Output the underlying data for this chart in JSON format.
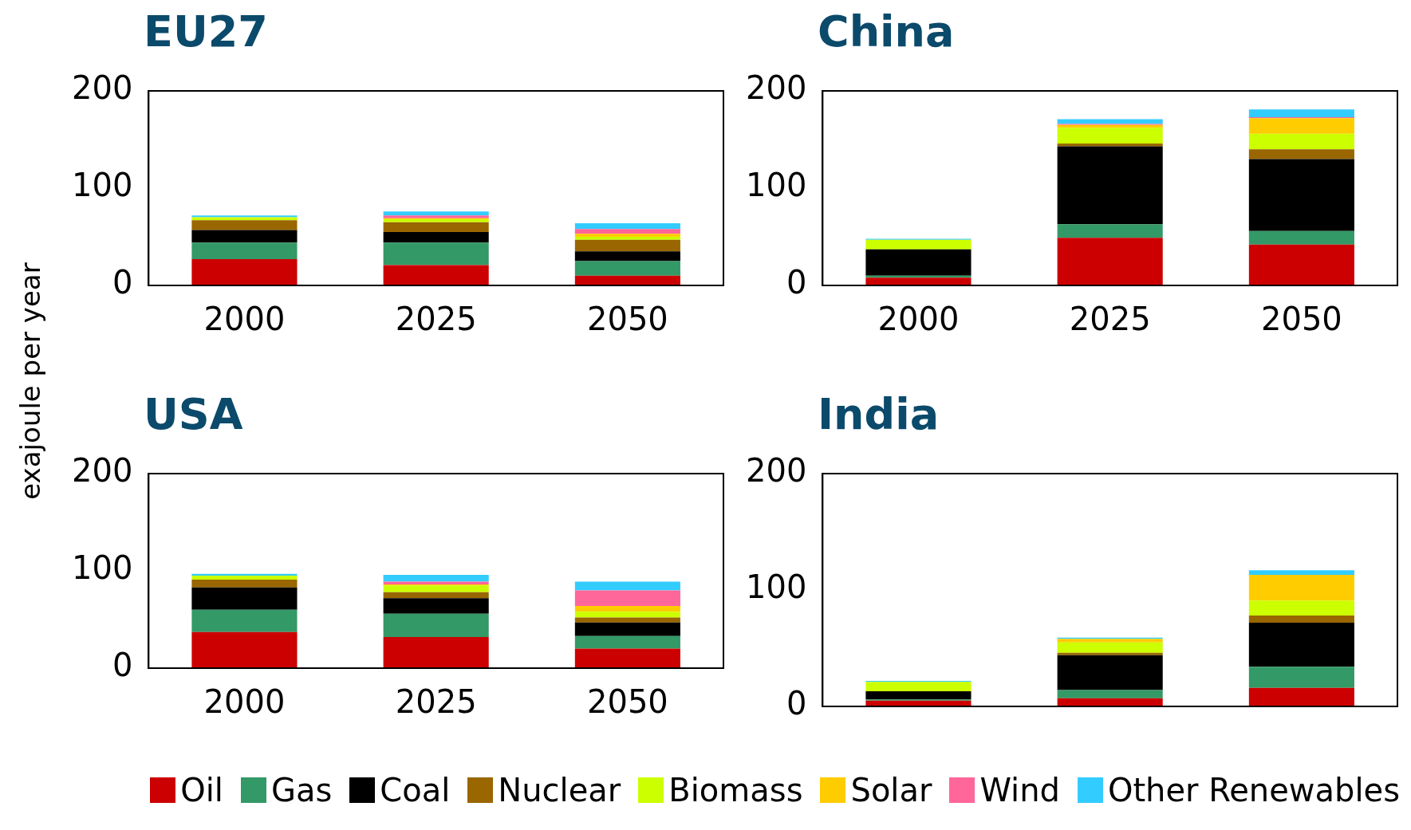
{
  "chart_data": [
    {
      "type": "bar",
      "title": "EU27",
      "ylabel": "exajoule per year",
      "categories": [
        "2000",
        "2025",
        "2050"
      ],
      "stacked": true,
      "ylim": [
        0,
        200
      ],
      "yticks": [
        0,
        100,
        200
      ],
      "grid": false,
      "legend": "bottom",
      "series": [
        {
          "name": "Oil",
          "color": "#cc0000",
          "values": [
            27,
            21,
            10
          ]
        },
        {
          "name": "Gas",
          "color": "#339966",
          "values": [
            17,
            23,
            15
          ]
        },
        {
          "name": "Coal",
          "color": "#000000",
          "values": [
            13,
            11,
            10
          ]
        },
        {
          "name": "Nuclear",
          "color": "#996600",
          "values": [
            10,
            10,
            12
          ]
        },
        {
          "name": "Biomass",
          "color": "#ccff00",
          "values": [
            3,
            3,
            3
          ]
        },
        {
          "name": "Solar",
          "color": "#ffcc00",
          "values": [
            0,
            1,
            3
          ]
        },
        {
          "name": "Wind",
          "color": "#ff6699",
          "values": [
            0,
            3,
            5
          ]
        },
        {
          "name": "Other Renewables",
          "color": "#33ccff",
          "values": [
            2,
            4,
            6
          ]
        }
      ]
    },
    {
      "type": "bar",
      "title": "China",
      "categories": [
        "2000",
        "2025",
        "2050"
      ],
      "stacked": true,
      "ylim": [
        0,
        200
      ],
      "yticks": [
        0,
        100,
        200
      ],
      "grid": false,
      "series": [
        {
          "color": "#cc0000",
          "values": [
            8,
            49,
            42
          ]
        },
        {
          "color": "#339966",
          "values": [
            2,
            14,
            14
          ]
        },
        {
          "color": "#000000",
          "values": [
            27,
            80,
            74
          ]
        },
        {
          "color": "#996600",
          "values": [
            0,
            3,
            10
          ]
        },
        {
          "color": "#ccff00",
          "values": [
            10,
            16,
            16
          ]
        },
        {
          "color": "#ffcc00",
          "values": [
            0,
            3,
            16
          ]
        },
        {
          "color": "#ff6699",
          "values": [
            0,
            1,
            1
          ]
        },
        {
          "color": "#33ccff",
          "values": [
            1,
            5,
            8
          ]
        }
      ]
    },
    {
      "type": "bar",
      "title": "USA",
      "categories": [
        "2000",
        "2025",
        "2050"
      ],
      "stacked": true,
      "ylim": [
        0,
        200
      ],
      "yticks": [
        0,
        100,
        200
      ],
      "grid": false,
      "series": [
        {
          "color": "#cc0000",
          "values": [
            37,
            32,
            20
          ]
        },
        {
          "color": "#339966",
          "values": [
            23,
            24,
            13
          ]
        },
        {
          "color": "#000000",
          "values": [
            23,
            16,
            14
          ]
        },
        {
          "color": "#996600",
          "values": [
            8,
            6,
            5
          ]
        },
        {
          "color": "#ccff00",
          "values": [
            4,
            7,
            6
          ]
        },
        {
          "color": "#ffcc00",
          "values": [
            0,
            1,
            6
          ]
        },
        {
          "color": "#ff6699",
          "values": [
            0,
            3,
            16
          ]
        },
        {
          "color": "#33ccff",
          "values": [
            2,
            7,
            9
          ]
        }
      ]
    },
    {
      "type": "bar",
      "title": "India",
      "categories": [
        null,
        null,
        null
      ],
      "stacked": true,
      "ylim": [
        0,
        200
      ],
      "yticks": [
        0,
        100,
        200
      ],
      "grid": false,
      "tick_labels": "y",
      "series": [
        {
          "color": "#cc0000",
          "values": [
            5,
            7,
            16
          ]
        },
        {
          "color": "#339966",
          "values": [
            1,
            7,
            18
          ]
        },
        {
          "color": "#000000",
          "values": [
            7,
            30,
            38
          ]
        },
        {
          "color": "#996600",
          "values": [
            0,
            2,
            6
          ]
        },
        {
          "color": "#ccff00",
          "values": [
            8,
            9,
            13
          ]
        },
        {
          "color": "#ffcc00",
          "values": [
            0,
            3,
            22
          ]
        },
        {
          "color": "#ff6699",
          "values": [
            0,
            0,
            0
          ]
        },
        {
          "color": "#33ccff",
          "values": [
            1,
            1,
            4
          ]
        }
      ]
    }
  ]
}
